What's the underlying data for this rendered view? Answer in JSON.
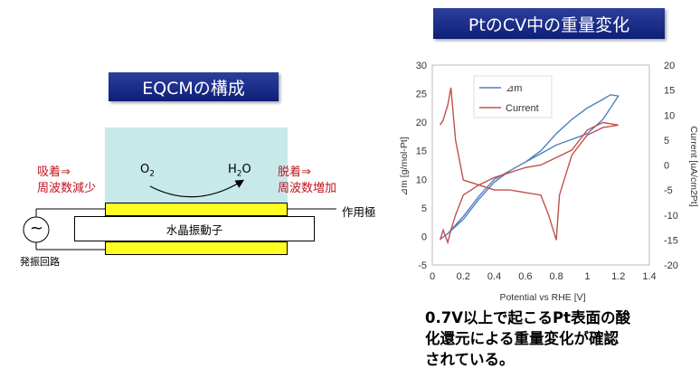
{
  "left": {
    "banner_title": "EQCMの構成",
    "adsorption_line1": "吸着⇒",
    "adsorption_line2": "周波数減少",
    "desorption_line1": "脱着⇒",
    "desorption_line2": "周波数増加",
    "o2_base": "O",
    "o2_sub": "2",
    "h2o_h": "H",
    "h2o_sub": "2",
    "h2o_o": "O",
    "crystal_label": "水晶振動子",
    "working_electrode_label": "作用極",
    "oscillator_label": "発振回路",
    "oscillator_symbol": "~",
    "colors": {
      "solution": "#c7e9ea",
      "electrode": "#ffff22",
      "banner": "#1b2d8a",
      "annotation": "#c0141e"
    }
  },
  "right": {
    "banner_title": "PtのCV中の重量変化",
    "conclusion_line1": "0.7V以上で起こるPt表面の酸",
    "conclusion_line2": "化還元による重量変化が確認",
    "conclusion_line3": "されている。"
  },
  "chart_data": {
    "type": "line",
    "xlabel": "Potential vs RHE [V]",
    "ylabel_left": "⊿m [g/mol-Pt]",
    "ylabel_right": "Current [uA/cm2Pt]",
    "xlim": [
      0,
      1.4
    ],
    "ylim_left": [
      -5,
      30
    ],
    "ylim_right": [
      -20,
      20
    ],
    "x_ticks": [
      "0",
      "0.2",
      "0.4",
      "0.6",
      "0.8",
      "1",
      "1.2",
      "1.4"
    ],
    "y_ticks_left": [
      "-5",
      "0",
      "5",
      "10",
      "15",
      "20",
      "25",
      "30"
    ],
    "y_ticks_right": [
      "-20",
      "-15",
      "-10",
      "-5",
      "0",
      "5",
      "10",
      "15",
      "20"
    ],
    "legend_position": "top-left",
    "series": [
      {
        "name": "⊿m",
        "axis": "left",
        "color": "#4f81bd",
        "x": [
          0.05,
          0.1,
          0.2,
          0.3,
          0.4,
          0.5,
          0.6,
          0.7,
          0.8,
          0.9,
          1.0,
          1.1,
          1.15,
          1.2,
          1.15,
          1.1,
          1.0,
          0.9,
          0.8,
          0.7,
          0.6,
          0.5,
          0.4,
          0.3,
          0.2,
          0.1,
          0.05
        ],
        "values": [
          -0.5,
          0.5,
          3.5,
          7.0,
          10.0,
          11.5,
          13.0,
          15.0,
          18.0,
          20.5,
          22.5,
          24.0,
          24.8,
          24.6,
          22.5,
          20.5,
          18.0,
          17.0,
          16.0,
          14.5,
          13.0,
          11.5,
          9.5,
          6.5,
          3.0,
          0.5,
          -0.5
        ]
      },
      {
        "name": "Current",
        "axis": "right",
        "color": "#c0504d",
        "x": [
          0.05,
          0.07,
          0.1,
          0.12,
          0.15,
          0.2,
          0.3,
          0.4,
          0.45,
          0.5,
          0.55,
          0.6,
          0.7,
          0.8,
          0.9,
          1.0,
          1.1,
          1.2,
          1.2,
          1.1,
          1.0,
          0.9,
          0.82,
          0.8,
          0.75,
          0.7,
          0.6,
          0.5,
          0.4,
          0.3,
          0.2,
          0.15,
          0.12,
          0.1,
          0.07,
          0.05
        ],
        "values": [
          -15.0,
          -13.0,
          -15.5,
          -13.0,
          -10.0,
          -6.0,
          -4.0,
          -2.5,
          -2.0,
          -1.5,
          -1.0,
          -0.5,
          0.0,
          1.5,
          3.0,
          7.0,
          8.5,
          8.0,
          8.0,
          7.5,
          6.0,
          2.0,
          -6.0,
          -15.0,
          -10.0,
          -6.0,
          -5.5,
          -5.0,
          -5.0,
          -4.0,
          -3.0,
          5.0,
          15.5,
          12.0,
          9.0,
          8.0
        ]
      }
    ]
  }
}
